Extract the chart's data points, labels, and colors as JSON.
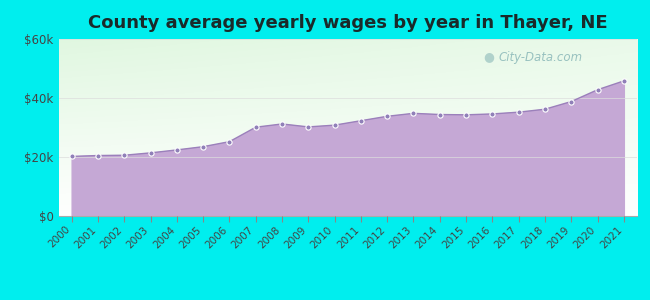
{
  "title": "County average yearly wages by year in Thayer, NE",
  "years": [
    2000,
    2001,
    2002,
    2003,
    2004,
    2005,
    2006,
    2007,
    2008,
    2009,
    2010,
    2011,
    2012,
    2013,
    2014,
    2015,
    2016,
    2017,
    2018,
    2019,
    2020,
    2021
  ],
  "values": [
    20200,
    20500,
    20600,
    21400,
    22400,
    23500,
    25200,
    30100,
    31200,
    30200,
    30800,
    32300,
    33800,
    34800,
    34400,
    34300,
    34600,
    35200,
    36200,
    38800,
    42800,
    45800
  ],
  "ylim": [
    0,
    60000
  ],
  "yticks": [
    0,
    20000,
    40000,
    60000
  ],
  "ytick_labels": [
    "$0",
    "$20k",
    "$40k",
    "$60k"
  ],
  "background_outer": "#00EEEE",
  "fill_color": "#C5A8D5",
  "fill_alpha": 1.0,
  "line_color": "#9B80BB",
  "marker_color": "#9080B8",
  "title_fontsize": 13,
  "title_color": "#1a2a2a",
  "watermark_text": "City-Data.com",
  "watermark_color": "#8ab8b8",
  "tick_color": "#444444",
  "grid_color": "#dddddd",
  "spine_color": "#aaaaaa"
}
